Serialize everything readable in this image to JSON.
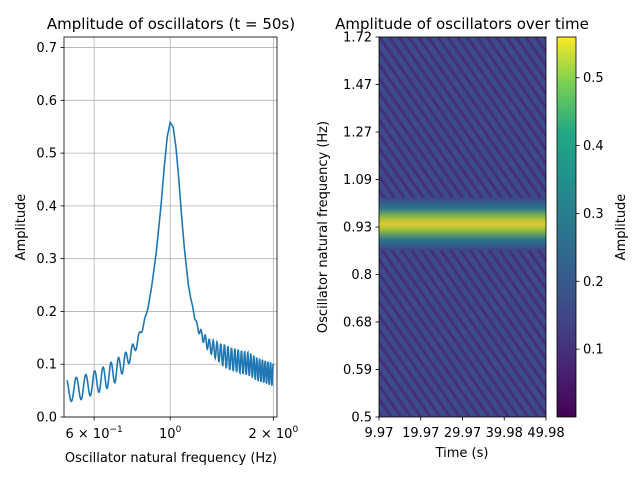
{
  "chart_data": [
    {
      "type": "line",
      "title": "Amplitude of oscillators (t = 50s)",
      "xlabel": "Oscillator natural frequency (Hz)",
      "ylabel": "Amplitude",
      "xscale": "log",
      "xlim": [
        0.49,
        2.05
      ],
      "ylim": [
        0,
        0.72
      ],
      "xticks": [
        {
          "value": 0.6,
          "base": "6 × 10",
          "exp": "−1"
        },
        {
          "value": 1.0,
          "base": "10",
          "exp": "0"
        },
        {
          "value": 2.0,
          "base": "2 × 10",
          "exp": "0"
        }
      ],
      "yticks": [
        "0.0",
        "0.1",
        "0.2",
        "0.3",
        "0.4",
        "0.5",
        "0.6",
        "0.7"
      ],
      "grid": true,
      "line_color": "#1f77b4",
      "series": [
        {
          "x": [
            0.5,
            0.55,
            0.6,
            0.65,
            0.7,
            0.75,
            0.8,
            0.85,
            0.88,
            0.91,
            0.94,
            0.96,
            0.98,
            1.0,
            1.02,
            1.04,
            1.06,
            1.08,
            1.1,
            1.13,
            1.16,
            1.2,
            1.25,
            1.3,
            1.35,
            1.4,
            1.5,
            1.6,
            1.7,
            1.8,
            1.9,
            2.0
          ],
          "y": [
            0.05,
            0.055,
            0.065,
            0.075,
            0.09,
            0.11,
            0.14,
            0.19,
            0.24,
            0.31,
            0.4,
            0.47,
            0.53,
            0.558,
            0.55,
            0.51,
            0.45,
            0.38,
            0.32,
            0.25,
            0.21,
            0.17,
            0.15,
            0.135,
            0.128,
            0.12,
            0.11,
            0.105,
            0.1,
            0.09,
            0.085,
            0.08
          ]
        }
      ]
    },
    {
      "type": "heatmap",
      "title": "Amplitude of oscillators over time",
      "xlabel": "Time (s)",
      "ylabel": "Oscillator natural frequency (Hz)",
      "xticks": [
        "9.97",
        "19.97",
        "29.97",
        "39.98",
        "49.98"
      ],
      "xlim": [
        9.97,
        49.98
      ],
      "yticks": [
        "0.5",
        "0.59",
        "0.68",
        "0.8",
        "0.93",
        "1.09",
        "1.27",
        "1.47",
        "1.72"
      ],
      "resonance_band_hz": [
        0.86,
        1.02
      ],
      "colorbar": {
        "label": "Amplitude",
        "ticks": [
          "0.1",
          "0.2",
          "0.3",
          "0.4",
          "0.5"
        ],
        "range": [
          0,
          0.56
        ],
        "colormap": "viridis"
      }
    }
  ]
}
